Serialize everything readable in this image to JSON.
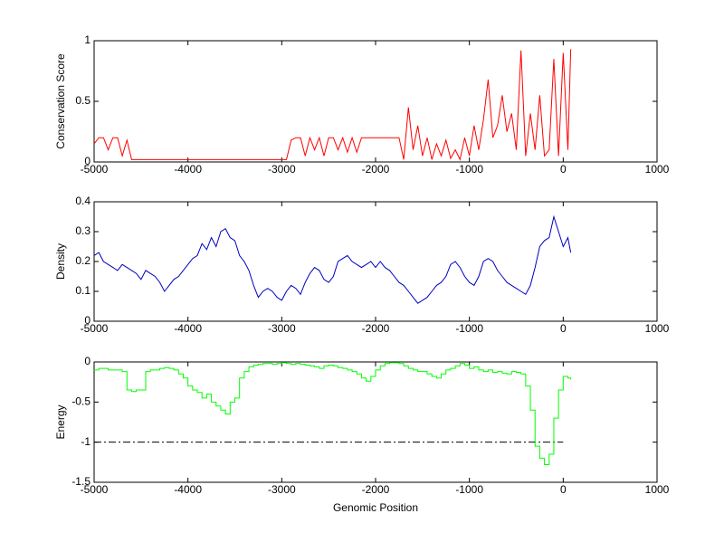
{
  "chart_data": [
    {
      "type": "line",
      "ylabel": "Conservation Score",
      "color": "#ff0000",
      "xlim": [
        -5000,
        1000
      ],
      "xticks": [
        -5000,
        -4000,
        -3000,
        -2000,
        -1000,
        0,
        1000
      ],
      "ylim": [
        0,
        1
      ],
      "yticks": [
        0,
        0.5,
        1
      ],
      "x": [
        -5000,
        -4950,
        -4900,
        -4850,
        -4800,
        -4750,
        -4700,
        -4650,
        -4600,
        -4550,
        -4500,
        -4450,
        -4400,
        -4350,
        -4300,
        -4250,
        -4200,
        -4150,
        -4100,
        -4050,
        -4000,
        -3950,
        -3900,
        -3850,
        -3800,
        -3750,
        -3700,
        -3650,
        -3600,
        -3550,
        -3500,
        -3450,
        -3400,
        -3350,
        -3300,
        -3250,
        -3200,
        -3150,
        -3100,
        -3050,
        -3000,
        -2950,
        -2900,
        -2850,
        -2800,
        -2750,
        -2700,
        -2650,
        -2600,
        -2550,
        -2500,
        -2450,
        -2400,
        -2350,
        -2300,
        -2250,
        -2200,
        -2150,
        -2100,
        -2050,
        -2000,
        -1950,
        -1900,
        -1850,
        -1800,
        -1750,
        -1700,
        -1650,
        -1600,
        -1550,
        -1500,
        -1450,
        -1400,
        -1350,
        -1300,
        -1250,
        -1200,
        -1150,
        -1100,
        -1050,
        -1000,
        -950,
        -900,
        -850,
        -800,
        -750,
        -700,
        -650,
        -600,
        -550,
        -500,
        -450,
        -400,
        -350,
        -300,
        -250,
        -200,
        -150,
        -100,
        -50,
        0,
        50,
        80
      ],
      "values": [
        0.15,
        0.2,
        0.2,
        0.1,
        0.2,
        0.2,
        0.05,
        0.18,
        0.02,
        0.02,
        0.02,
        0.02,
        0.02,
        0.02,
        0.02,
        0.02,
        0.02,
        0.02,
        0.02,
        0.02,
        0.02,
        0.02,
        0.02,
        0.02,
        0.02,
        0.02,
        0.02,
        0.02,
        0.02,
        0.02,
        0.02,
        0.02,
        0.02,
        0.02,
        0.02,
        0.02,
        0.02,
        0.02,
        0.02,
        0.02,
        0.02,
        0.02,
        0.18,
        0.2,
        0.2,
        0.05,
        0.2,
        0.1,
        0.2,
        0.05,
        0.2,
        0.2,
        0.1,
        0.2,
        0.08,
        0.2,
        0.08,
        0.2,
        0.2,
        0.2,
        0.2,
        0.2,
        0.2,
        0.2,
        0.2,
        0.2,
        0.02,
        0.45,
        0.1,
        0.3,
        0.05,
        0.2,
        0.02,
        0.15,
        0.05,
        0.18,
        0.03,
        0.1,
        0.02,
        0.2,
        0.05,
        0.3,
        0.1,
        0.35,
        0.68,
        0.2,
        0.3,
        0.55,
        0.25,
        0.4,
        0.1,
        0.92,
        0.05,
        0.4,
        0.1,
        0.55,
        0.05,
        0.1,
        0.85,
        0.05,
        0.9,
        0.1,
        0.93
      ]
    },
    {
      "type": "line",
      "ylabel": "Density",
      "color": "#0000c0",
      "xlim": [
        -5000,
        1000
      ],
      "xticks": [
        -5000,
        -4000,
        -3000,
        -2000,
        -1000,
        0,
        1000
      ],
      "ylim": [
        0,
        0.4
      ],
      "yticks": [
        0,
        0.1,
        0.2,
        0.3,
        0.4
      ],
      "x": [
        -5000,
        -4950,
        -4900,
        -4850,
        -4800,
        -4750,
        -4700,
        -4650,
        -4600,
        -4550,
        -4500,
        -4450,
        -4400,
        -4350,
        -4300,
        -4250,
        -4200,
        -4150,
        -4100,
        -4050,
        -4000,
        -3950,
        -3900,
        -3850,
        -3800,
        -3750,
        -3700,
        -3650,
        -3600,
        -3550,
        -3500,
        -3450,
        -3400,
        -3350,
        -3300,
        -3250,
        -3200,
        -3150,
        -3100,
        -3050,
        -3000,
        -2950,
        -2900,
        -2850,
        -2800,
        -2750,
        -2700,
        -2650,
        -2600,
        -2550,
        -2500,
        -2450,
        -2400,
        -2350,
        -2300,
        -2250,
        -2200,
        -2150,
        -2100,
        -2050,
        -2000,
        -1950,
        -1900,
        -1850,
        -1800,
        -1750,
        -1700,
        -1650,
        -1600,
        -1550,
        -1500,
        -1450,
        -1400,
        -1350,
        -1300,
        -1250,
        -1200,
        -1150,
        -1100,
        -1050,
        -1000,
        -950,
        -900,
        -850,
        -800,
        -750,
        -700,
        -650,
        -600,
        -550,
        -500,
        -450,
        -400,
        -350,
        -300,
        -250,
        -200,
        -150,
        -100,
        -50,
        0,
        50,
        80
      ],
      "values": [
        0.22,
        0.23,
        0.2,
        0.19,
        0.18,
        0.17,
        0.19,
        0.18,
        0.17,
        0.16,
        0.14,
        0.17,
        0.16,
        0.15,
        0.13,
        0.1,
        0.12,
        0.14,
        0.15,
        0.17,
        0.19,
        0.21,
        0.22,
        0.26,
        0.24,
        0.28,
        0.25,
        0.3,
        0.31,
        0.28,
        0.27,
        0.22,
        0.2,
        0.17,
        0.12,
        0.08,
        0.1,
        0.11,
        0.1,
        0.08,
        0.07,
        0.1,
        0.12,
        0.11,
        0.09,
        0.13,
        0.16,
        0.18,
        0.17,
        0.14,
        0.13,
        0.15,
        0.2,
        0.21,
        0.22,
        0.2,
        0.19,
        0.18,
        0.19,
        0.2,
        0.18,
        0.2,
        0.18,
        0.17,
        0.15,
        0.13,
        0.12,
        0.1,
        0.08,
        0.06,
        0.07,
        0.08,
        0.1,
        0.12,
        0.13,
        0.15,
        0.19,
        0.2,
        0.18,
        0.15,
        0.13,
        0.12,
        0.15,
        0.2,
        0.21,
        0.2,
        0.17,
        0.15,
        0.13,
        0.12,
        0.11,
        0.1,
        0.09,
        0.12,
        0.18,
        0.25,
        0.27,
        0.28,
        0.35,
        0.3,
        0.25,
        0.28,
        0.23
      ]
    },
    {
      "type": "line",
      "step": true,
      "ylabel": "Energy",
      "xlabel": "Genomic Position",
      "color": "#00ff00",
      "xlim": [
        -5000,
        1000
      ],
      "xticks": [
        -5000,
        -4000,
        -3000,
        -2000,
        -1000,
        0,
        1000
      ],
      "ylim": [
        -1.5,
        0
      ],
      "yticks": [
        -1.5,
        -1,
        -0.5,
        0
      ],
      "reference_line": {
        "value": -1,
        "xrange": [
          -5000,
          0
        ],
        "color": "#000000",
        "style": "dash-dot"
      },
      "x": [
        -5000,
        -4950,
        -4900,
        -4850,
        -4800,
        -4750,
        -4700,
        -4650,
        -4600,
        -4550,
        -4500,
        -4450,
        -4400,
        -4350,
        -4300,
        -4250,
        -4200,
        -4150,
        -4100,
        -4050,
        -4000,
        -3950,
        -3900,
        -3850,
        -3800,
        -3750,
        -3700,
        -3650,
        -3600,
        -3550,
        -3500,
        -3450,
        -3400,
        -3350,
        -3300,
        -3250,
        -3200,
        -3150,
        -3100,
        -3050,
        -3000,
        -2950,
        -2900,
        -2850,
        -2800,
        -2750,
        -2700,
        -2650,
        -2600,
        -2550,
        -2500,
        -2450,
        -2400,
        -2350,
        -2300,
        -2250,
        -2200,
        -2150,
        -2100,
        -2050,
        -2000,
        -1950,
        -1900,
        -1850,
        -1800,
        -1750,
        -1700,
        -1650,
        -1600,
        -1550,
        -1500,
        -1450,
        -1400,
        -1350,
        -1300,
        -1250,
        -1200,
        -1150,
        -1100,
        -1050,
        -1000,
        -950,
        -900,
        -850,
        -800,
        -750,
        -700,
        -650,
        -600,
        -550,
        -500,
        -450,
        -400,
        -350,
        -300,
        -250,
        -200,
        -150,
        -100,
        -50,
        0,
        50,
        80
      ],
      "values": [
        -0.1,
        -0.08,
        -0.08,
        -0.1,
        -0.1,
        -0.1,
        -0.12,
        -0.35,
        -0.37,
        -0.35,
        -0.35,
        -0.12,
        -0.1,
        -0.1,
        -0.08,
        -0.07,
        -0.08,
        -0.1,
        -0.15,
        -0.2,
        -0.3,
        -0.35,
        -0.38,
        -0.45,
        -0.4,
        -0.5,
        -0.55,
        -0.6,
        -0.65,
        -0.5,
        -0.45,
        -0.2,
        -0.12,
        -0.06,
        -0.04,
        -0.03,
        -0.02,
        -0.02,
        -0.03,
        -0.02,
        -0.01,
        -0.02,
        -0.03,
        -0.02,
        -0.03,
        -0.04,
        -0.05,
        -0.06,
        -0.08,
        -0.05,
        -0.04,
        -0.05,
        -0.07,
        -0.08,
        -0.1,
        -0.12,
        -0.15,
        -0.2,
        -0.24,
        -0.18,
        -0.1,
        -0.05,
        -0.02,
        -0.01,
        -0.01,
        -0.02,
        -0.05,
        -0.08,
        -0.1,
        -0.12,
        -0.12,
        -0.15,
        -0.18,
        -0.2,
        -0.15,
        -0.1,
        -0.08,
        -0.05,
        -0.02,
        -0.04,
        -0.08,
        -0.06,
        -0.1,
        -0.12,
        -0.1,
        -0.13,
        -0.12,
        -0.14,
        -0.15,
        -0.12,
        -0.13,
        -0.15,
        -0.3,
        -0.6,
        -1.05,
        -1.2,
        -1.28,
        -1.15,
        -0.7,
        -0.35,
        -0.18,
        -0.2,
        -0.22
      ]
    }
  ]
}
